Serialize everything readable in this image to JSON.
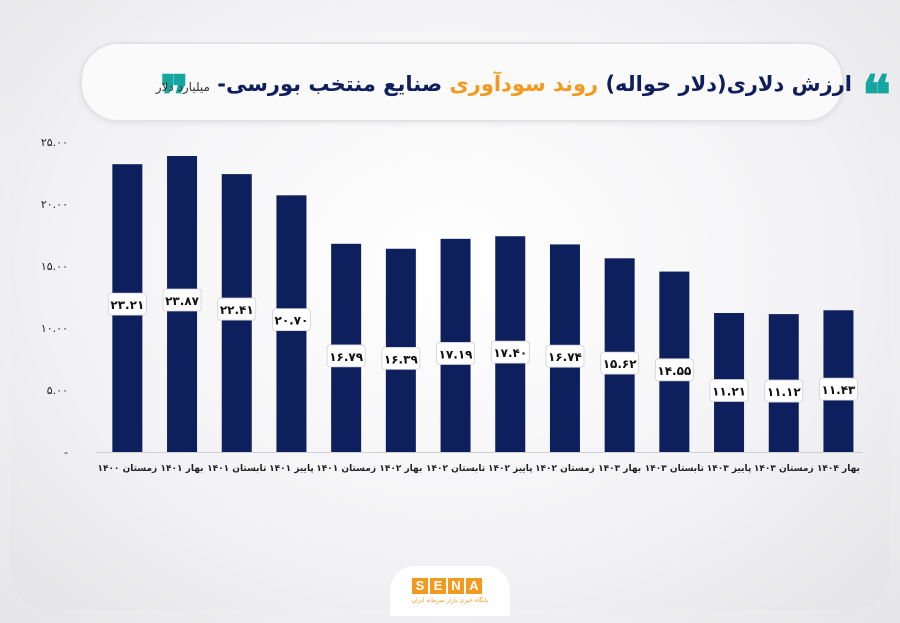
{
  "header": {
    "title_part1": "ارزش دلاری(دلار حواله)",
    "title_highlight": "روند سودآوری",
    "title_part2": "صنایع منتخب بورسی-",
    "title_unit": "میلیارد دلار",
    "quote_open": "❞",
    "quote_close": "❝"
  },
  "logo": {
    "letters": [
      "S",
      "E",
      "N",
      "A"
    ],
    "subtitle": "پایگاه خبری بازار سرمایه ایران"
  },
  "colors": {
    "bar": "#0d1f5c",
    "accent": "#f29a1f",
    "quote": "#16a6a2",
    "title": "#0f1f5e"
  },
  "chart_data": {
    "type": "bar",
    "categories": [
      "زمستان ۱۴۰۰",
      "بهار ۱۴۰۱",
      "تابستان ۱۴۰۱",
      "پاییز ۱۴۰۱",
      "زمستان ۱۴۰۱",
      "بهار ۱۴۰۲",
      "تابستان ۱۴۰۲",
      "پاییز ۱۴۰۲",
      "زمستان ۱۴۰۲",
      "بهار ۱۴۰۳",
      "تابستان ۱۴۰۳",
      "پاییز ۱۴۰۳",
      "زمستان ۱۴۰۳",
      "بهار ۱۴۰۴"
    ],
    "values": [
      23.21,
      23.87,
      22.41,
      20.7,
      16.79,
      16.39,
      17.19,
      17.4,
      16.74,
      15.62,
      14.55,
      11.21,
      11.12,
      11.43
    ],
    "value_labels": [
      "۲۳.۲۱",
      "۲۳.۸۷",
      "۲۲.۴۱",
      "۲۰.۷۰",
      "۱۶.۷۹",
      "۱۶.۳۹",
      "۱۷.۱۹",
      "۱۷.۴۰",
      "۱۶.۷۴",
      "۱۵.۶۲",
      "۱۴.۵۵",
      "۱۱.۲۱",
      "۱۱.۱۲",
      "۱۱.۴۳"
    ],
    "ylim": [
      0,
      25
    ],
    "yticks": [
      "-",
      "۵.۰۰",
      "۱۰.۰۰",
      "۱۵.۰۰",
      "۲۰.۰۰",
      "۲۵.۰۰"
    ],
    "grid": false,
    "legend": "none"
  }
}
